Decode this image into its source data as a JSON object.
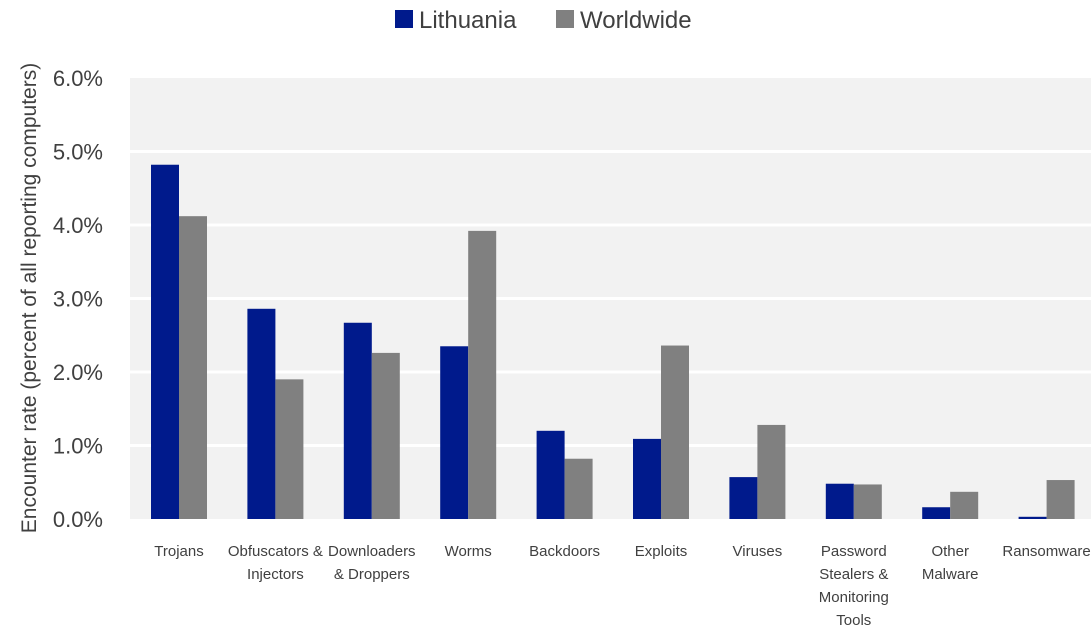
{
  "chart_data": {
    "type": "bar",
    "title": "",
    "xlabel": "",
    "ylabel": "Encounter rate (percent of all reporting computers)",
    "ylim": [
      0,
      6
    ],
    "yticks": [
      "0.0%",
      "1.0%",
      "2.0%",
      "3.0%",
      "4.0%",
      "5.0%",
      "6.0%"
    ],
    "grid": true,
    "legend_position": "top-center",
    "categories": [
      "Trojans",
      "Obfuscators & Injectors",
      "Downloaders & Droppers",
      "Worms",
      "Backdoors",
      "Exploits",
      "Viruses",
      "Password Stealers & Monitoring Tools",
      "Other Malware",
      "Ransomware"
    ],
    "category_lines": [
      [
        "Trojans"
      ],
      [
        "Obfuscators &",
        "Injectors"
      ],
      [
        "Downloaders",
        "& Droppers"
      ],
      [
        "Worms"
      ],
      [
        "Backdoors"
      ],
      [
        "Exploits"
      ],
      [
        "Viruses"
      ],
      [
        "Password",
        "Stealers &",
        "Monitoring",
        "Tools"
      ],
      [
        "Other",
        "Malware"
      ],
      [
        "Ransomware"
      ]
    ],
    "series": [
      {
        "name": "Lithuania",
        "color": "#001a8c",
        "values": [
          4.82,
          2.86,
          2.67,
          2.35,
          1.2,
          1.09,
          0.57,
          0.48,
          0.16,
          0.03
        ]
      },
      {
        "name": "Worldwide",
        "color": "#808080",
        "values": [
          4.12,
          1.9,
          2.26,
          3.92,
          0.82,
          2.36,
          1.28,
          0.47,
          0.37,
          0.53
        ]
      }
    ],
    "colors": {
      "plot_background": "#f2f2f2",
      "gridline": "#ffffff",
      "text": "#404040"
    }
  }
}
